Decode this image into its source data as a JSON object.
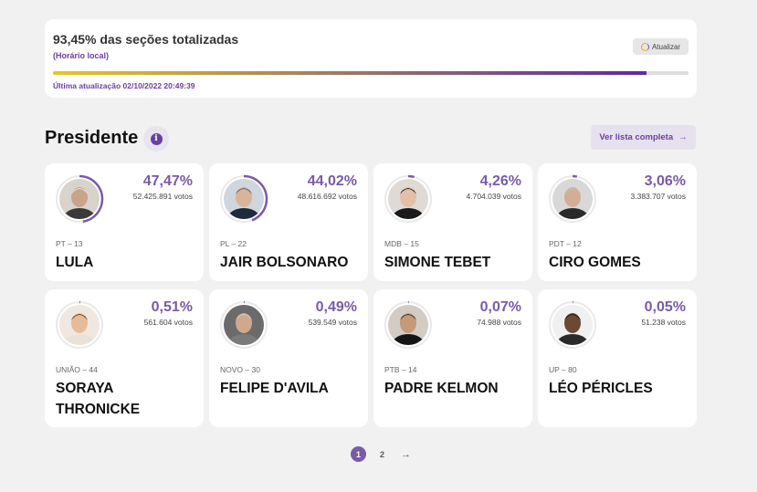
{
  "status": {
    "title": "93,45% das seções totalizadas",
    "subtitle": "(Horário local)",
    "refresh_label": "Atualizar",
    "progress_pct": 93.45,
    "last_update": "Última atualização 02/10/2022 20:49:39"
  },
  "section": {
    "title": "Presidente",
    "full_list_label": "Ver lista completa",
    "full_list_arrow": "→"
  },
  "candidates": [
    {
      "name": "LULA",
      "party": "PT – 13",
      "pct": "47,47%",
      "pct_value": 47.47,
      "votes": "52.425.891 votos"
    },
    {
      "name": "JAIR BOLSONARO",
      "party": "PL – 22",
      "pct": "44,02%",
      "pct_value": 44.02,
      "votes": "48.616.692 votos"
    },
    {
      "name": "SIMONE TEBET",
      "party": "MDB – 15",
      "pct": "4,26%",
      "pct_value": 4.26,
      "votes": "4.704.039 votos"
    },
    {
      "name": "CIRO GOMES",
      "party": "PDT – 12",
      "pct": "3,06%",
      "pct_value": 3.06,
      "votes": "3.383.707 votos"
    },
    {
      "name": "SORAYA THRONICKE",
      "party": "UNIÃO – 44",
      "pct": "0,51%",
      "pct_value": 0.51,
      "votes": "561.604 votos"
    },
    {
      "name": "FELIPE D'AVILA",
      "party": "NOVO – 30",
      "pct": "0,49%",
      "pct_value": 0.49,
      "votes": "539.549 votos"
    },
    {
      "name": "PADRE KELMON",
      "party": "PTB – 14",
      "pct": "0,07%",
      "pct_value": 0.07,
      "votes": "74.988 votos"
    },
    {
      "name": "LÉO PÉRICLES",
      "party": "UP – 80",
      "pct": "0,05%",
      "pct_value": 0.05,
      "votes": "51.238 votos"
    }
  ],
  "pagination": {
    "pages": [
      "1",
      "2"
    ],
    "current": "1",
    "next": "→"
  },
  "colors": {
    "accent": "#7a5aa8",
    "ring_track": "#e9e9e9"
  }
}
